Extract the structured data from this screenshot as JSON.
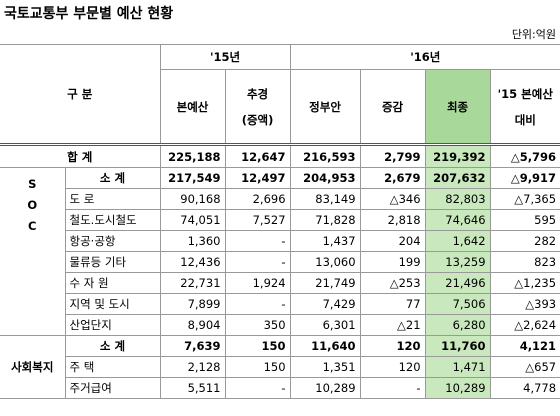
{
  "title": "국토교통부 부문별 예산 현황",
  "unit": "단위:억원",
  "header": {
    "group": "구 분",
    "year15": "'15년",
    "year16": "'16년",
    "columns": [
      [
        "본예산"
      ],
      [
        "추경",
        "(증액)"
      ],
      [
        "정부안"
      ],
      [
        "증감"
      ],
      [
        "최종"
      ],
      [
        "'15 본예산",
        "대비"
      ]
    ]
  },
  "total": {
    "label": "합 계",
    "values": [
      "225,188",
      "12,647",
      "216,593",
      "2,799",
      "219,392",
      "△5,796"
    ]
  },
  "groups": [
    {
      "letters": [
        "S",
        "O",
        "C"
      ],
      "rows": [
        {
          "label": "소 계",
          "values": [
            "217,549",
            "12,497",
            "204,953",
            "2,679",
            "207,632",
            "△9,917"
          ]
        },
        {
          "label": "도 로",
          "values": [
            "90,168",
            "2,696",
            "83,149",
            "△346",
            "82,803",
            "△7,365"
          ]
        },
        {
          "label": "철도.도시철도",
          "values": [
            "74,051",
            "7,527",
            "71,828",
            "2,818",
            "74,646",
            "595"
          ]
        },
        {
          "label": "항공·공항",
          "values": [
            "1,360",
            "-",
            "1,437",
            "204",
            "1,642",
            "282"
          ]
        },
        {
          "label": "물류등 기타",
          "values": [
            "12,436",
            "-",
            "13,060",
            "199",
            "13,259",
            "823"
          ]
        },
        {
          "label": "수 자 원",
          "values": [
            "22,731",
            "1,924",
            "21,749",
            "△253",
            "21,496",
            "△1,235"
          ]
        },
        {
          "label": "지역 및 도시",
          "values": [
            "7,899",
            "-",
            "7,429",
            "77",
            "7,506",
            "△393"
          ]
        },
        {
          "label": "산업단지",
          "values": [
            "8,904",
            "350",
            "6,301",
            "△21",
            "6,280",
            "△2,624"
          ]
        }
      ]
    },
    {
      "name": "사회복지",
      "rows": [
        {
          "label": "소 계",
          "values": [
            "7,639",
            "150",
            "11,640",
            "120",
            "11,760",
            "4,121"
          ]
        },
        {
          "label": "주 택",
          "values": [
            "2,128",
            "150",
            "1,351",
            "120",
            "1,471",
            "△657"
          ]
        },
        {
          "label": "주거급여",
          "values": [
            "5,511",
            "-",
            "10,289",
            "-",
            "10,289",
            "4,778"
          ]
        }
      ]
    }
  ]
}
